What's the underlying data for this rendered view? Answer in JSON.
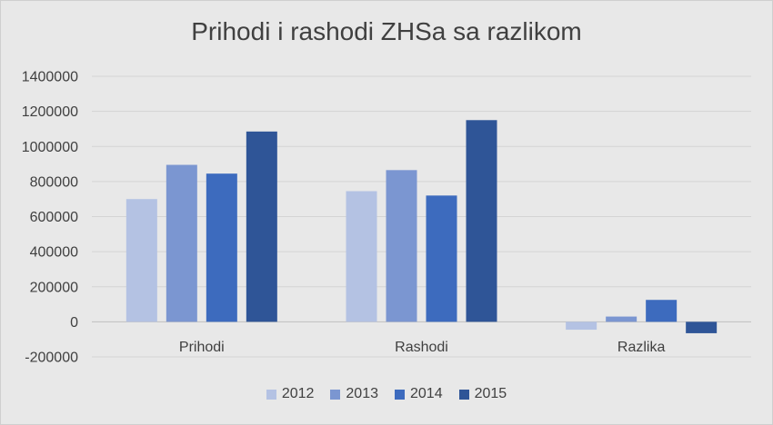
{
  "chart_data": {
    "type": "bar",
    "title": "Prihodi i rashodi ZHSa sa razlikom",
    "xlabel": "",
    "ylabel": "",
    "categories": [
      "Prihodi",
      "Rashodi",
      "Razlika"
    ],
    "ylim": [
      -200000,
      1400000
    ],
    "yticks": [
      -200000,
      0,
      200000,
      400000,
      600000,
      800000,
      1000000,
      1200000,
      1400000
    ],
    "ytick_labels": [
      "-200000",
      "0",
      "200000",
      "400000",
      "600000",
      "800000",
      "1000000",
      "1200000",
      "1400000"
    ],
    "grid": true,
    "legend_position": "bottom",
    "series": [
      {
        "name": "2012",
        "color": "#b4c2e3",
        "values": [
          700000,
          745000,
          -45000
        ]
      },
      {
        "name": "2013",
        "color": "#7b96d1",
        "values": [
          895000,
          865000,
          30000
        ]
      },
      {
        "name": "2014",
        "color": "#3d6bbe",
        "values": [
          845000,
          720000,
          125000
        ]
      },
      {
        "name": "2015",
        "color": "#2f5597",
        "values": [
          1085000,
          1150000,
          -65000
        ]
      }
    ]
  }
}
